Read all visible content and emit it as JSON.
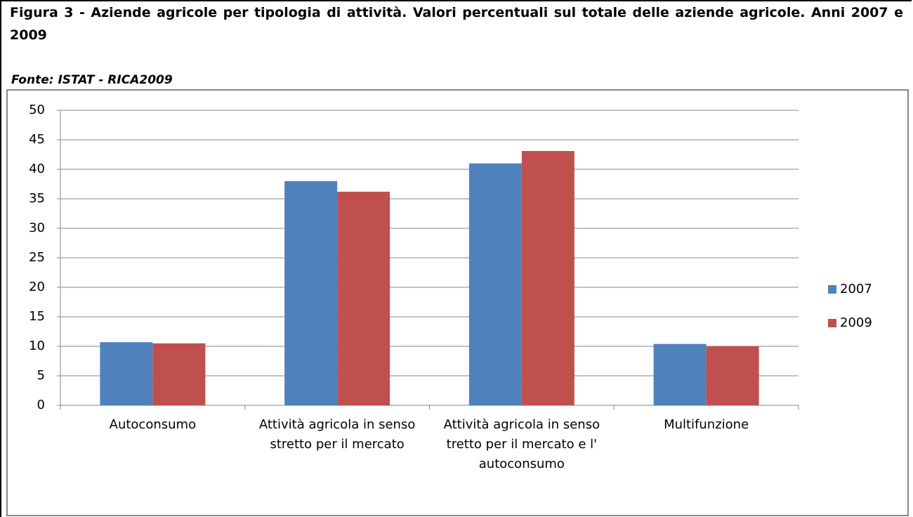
{
  "chart_data": {
    "type": "bar",
    "title": "Figura 3 - Aziende agricole per tipologia di attività. Valori percentuali sul totale delle aziende agricole. Anni 2007 e 2009",
    "subtitle": "Fonte: ISTAT - RICA2009",
    "categories": [
      "Autoconsumo",
      "Attività agricola in senso stretto per il mercato",
      "Attività agricola in senso tretto per il mercato e l' autoconsumo",
      "Multifunzione"
    ],
    "series": [
      {
        "name": "2007",
        "color": "#4f81bd",
        "values": [
          10.7,
          38.0,
          41.0,
          10.4
        ]
      },
      {
        "name": "2009",
        "color": "#c0504d",
        "values": [
          10.5,
          36.2,
          43.1,
          10.0
        ]
      }
    ],
    "ylim": [
      0,
      50
    ],
    "yticks": [
      0,
      5,
      10,
      15,
      20,
      25,
      30,
      35,
      40,
      45,
      50
    ],
    "grid": true,
    "legend": "right"
  }
}
